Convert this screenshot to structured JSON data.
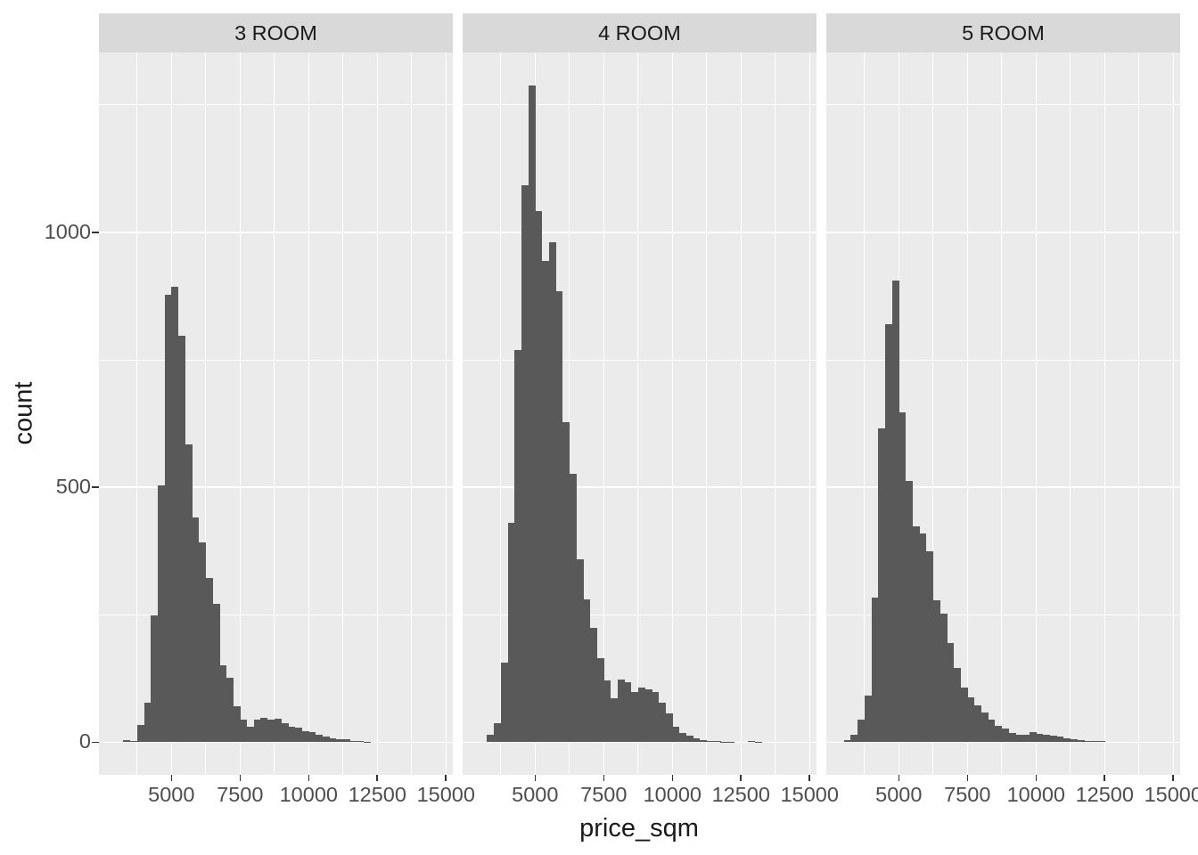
{
  "chart_data": {
    "type": "histogram",
    "title": "",
    "xlabel": "price_sqm",
    "ylabel": "count",
    "binwidth": 250,
    "xlim": [
      2347,
      15260
    ],
    "ylim": [
      -64,
      1352.6
    ],
    "x_ticks": [
      {
        "value": 5000,
        "label": "5000"
      },
      {
        "value": 7500,
        "label": "7500"
      },
      {
        "value": 10000,
        "label": "10000"
      },
      {
        "value": 12500,
        "label": "12500"
      },
      {
        "value": 15000,
        "label": "15000"
      }
    ],
    "y_ticks": [
      {
        "value": 0,
        "label": "0"
      },
      {
        "value": 500,
        "label": "500"
      },
      {
        "value": 1000,
        "label": "1000"
      }
    ],
    "x_minor_breaks": [
      3750,
      6250,
      8750,
      11250,
      13750
    ],
    "y_minor_breaks": [
      250,
      750,
      1250
    ],
    "grid": "on",
    "legend": "none",
    "facets": [
      {
        "label": "3 ROOM",
        "bin_start": 3250,
        "counts": [
          4,
          2,
          34,
          77,
          249,
          503,
          878,
          894,
          798,
          584,
          440,
          392,
          322,
          272,
          150,
          127,
          70,
          44,
          31,
          44,
          47,
          45,
          46,
          37,
          30,
          28,
          22,
          19,
          15,
          11,
          8,
          5,
          6,
          3,
          2,
          1
        ]
      },
      {
        "label": "4 ROOM",
        "bin_start": 3250,
        "counts": [
          15,
          38,
          156,
          430,
          770,
          1092,
          1288,
          1042,
          943,
          981,
          884,
          627,
          527,
          358,
          280,
          225,
          165,
          121,
          86,
          123,
          117,
          99,
          107,
          103,
          98,
          77,
          57,
          31,
          18,
          12,
          8,
          4,
          3,
          2,
          1,
          1,
          0,
          0,
          3,
          1
        ]
      },
      {
        "label": "5 ROOM",
        "bin_start": 3000,
        "counts": [
          4,
          15,
          45,
          92,
          284,
          615,
          820,
          905,
          647,
          512,
          424,
          409,
          374,
          279,
          252,
          195,
          146,
          108,
          88,
          73,
          58,
          44,
          32,
          26,
          18,
          15,
          14,
          19,
          17,
          14,
          13,
          11,
          7,
          5,
          4,
          3,
          2,
          2
        ]
      }
    ],
    "colors": {
      "bar_fill": "#595959",
      "panel_background": "#EBEBEB",
      "strip_background": "#D9D9D9",
      "gridline": "#FFFFFF",
      "tick_mark": "#333333",
      "axis_text": "#4D4D4D",
      "title_text": "#1A1A1A"
    }
  }
}
